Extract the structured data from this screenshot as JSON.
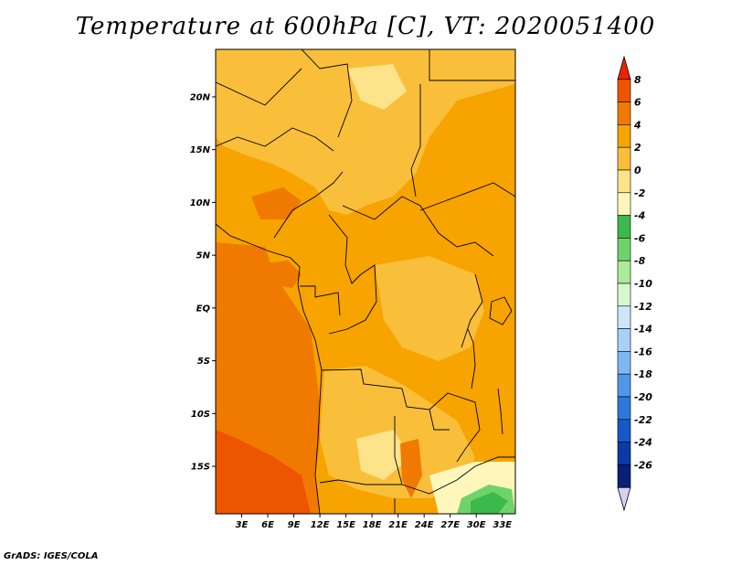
{
  "title": "Temperature at 600hPa [C], VT: 2020051400",
  "credit": "GrADS: IGES/COLA",
  "map": {
    "lat_range": [
      -19.5,
      24.5
    ],
    "lon_range": [
      0,
      34.5
    ],
    "lat_labels": [
      {
        "text": "20N",
        "lat": 20
      },
      {
        "text": "15N",
        "lat": 15
      },
      {
        "text": "10N",
        "lat": 10
      },
      {
        "text": "5N",
        "lat": 5
      },
      {
        "text": "EQ",
        "lat": 0
      },
      {
        "text": "5S",
        "lat": -5
      },
      {
        "text": "10S",
        "lat": -10
      },
      {
        "text": "15S",
        "lat": -15
      }
    ],
    "lon_labels": [
      {
        "text": "3E",
        "lon": 3
      },
      {
        "text": "6E",
        "lon": 6
      },
      {
        "text": "9E",
        "lon": 9
      },
      {
        "text": "12E",
        "lon": 12
      },
      {
        "text": "15E",
        "lon": 15
      },
      {
        "text": "18E",
        "lon": 18
      },
      {
        "text": "21E",
        "lon": 21
      },
      {
        "text": "24E",
        "lon": 24
      },
      {
        "text": "27E",
        "lon": 27
      },
      {
        "text": "30E",
        "lon": 30
      },
      {
        "text": "33E",
        "lon": 33
      }
    ]
  },
  "colorbar": {
    "labels": [
      "8",
      "6",
      "4",
      "2",
      "0",
      "-2",
      "-4",
      "-6",
      "-8",
      "-10",
      "-12",
      "-14",
      "-16",
      "-18",
      "-20",
      "-22",
      "-24",
      "-26"
    ],
    "colors": [
      "#ee2200",
      "#ee5500",
      "#f07a00",
      "#f7a300",
      "#f9bf3b",
      "#fde38a",
      "#fff6bb",
      "#3bb94a",
      "#6fd36b",
      "#aaeb99",
      "#d8f6d0",
      "#cce6fb",
      "#a9d1f7",
      "#7db8f2",
      "#4f97ea",
      "#2c78dd",
      "#1559c6",
      "#0b3aa7",
      "#0a1f78",
      "#d6d0f2"
    ]
  },
  "regions": [
    {
      "name": "base",
      "color": "#f7a300"
    },
    {
      "name": "sahara-central",
      "color": "#f9bf3b"
    },
    {
      "name": "sahara-north-bright",
      "color": "#fde38a"
    },
    {
      "name": "congo-east",
      "color": "#f9bf3b"
    },
    {
      "name": "angola-plateau",
      "color": "#f9bf3b"
    },
    {
      "name": "zambia-bright",
      "color": "#fde38a"
    },
    {
      "name": "atlantic-warm",
      "color": "#f07a00"
    },
    {
      "name": "gulf-warm",
      "color": "#f07a00"
    },
    {
      "name": "nigeria-warm",
      "color": "#f07a00"
    },
    {
      "name": "warm-spot-west",
      "color": "#f07a00"
    },
    {
      "name": "zambia-warm",
      "color": "#f07a00"
    },
    {
      "name": "southwest-hot",
      "color": "#ee5500"
    },
    {
      "name": "mozambique-cool",
      "color": "#fff6bb"
    },
    {
      "name": "zimbabwe-cold",
      "color": "#6fd36b"
    },
    {
      "name": "zimbabwe-colder",
      "color": "#3bb94a"
    }
  ]
}
